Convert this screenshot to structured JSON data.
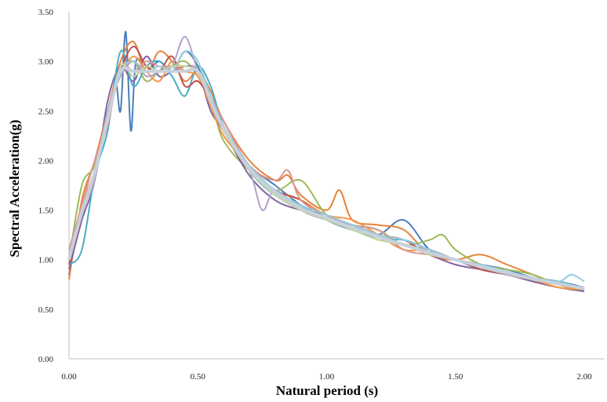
{
  "chart_data": {
    "type": "line",
    "title": "",
    "xlabel": "Natural period (s)",
    "ylabel": "Spectral Acceleration(g)",
    "xlim": [
      0,
      2
    ],
    "ylim": [
      0,
      3.5
    ],
    "x_ticks": [
      "0.00",
      "0.50",
      "1.00",
      "1.50",
      "2.00"
    ],
    "y_ticks": [
      "0.00",
      "0.50",
      "1.00",
      "1.50",
      "2.00",
      "2.50",
      "3.00",
      "3.50"
    ],
    "grid": false,
    "legend": "none",
    "series": [
      {
        "color": "#4a7ebb",
        "x": [
          0,
          0.05,
          0.1,
          0.15,
          0.18,
          0.2,
          0.22,
          0.24,
          0.26,
          0.3,
          0.35,
          0.4,
          0.45,
          0.5,
          0.55,
          0.6,
          0.7,
          0.8,
          0.9,
          1.0,
          1.1,
          1.2,
          1.3,
          1.4,
          1.5,
          1.6,
          1.7,
          1.8,
          1.9,
          2.0
        ],
        "y": [
          0.85,
          1.5,
          1.9,
          2.4,
          2.8,
          2.5,
          3.3,
          2.3,
          3.0,
          2.9,
          3.0,
          2.9,
          3.1,
          2.95,
          2.6,
          2.3,
          1.95,
          1.75,
          1.55,
          1.4,
          1.3,
          1.25,
          1.4,
          1.1,
          1.0,
          0.95,
          0.9,
          0.82,
          0.78,
          0.72
        ]
      },
      {
        "color": "#e8823a",
        "x": [
          0,
          0.05,
          0.1,
          0.15,
          0.2,
          0.25,
          0.3,
          0.35,
          0.4,
          0.45,
          0.5,
          0.55,
          0.6,
          0.7,
          0.8,
          0.85,
          0.9,
          1.0,
          1.05,
          1.1,
          1.2,
          1.3,
          1.4,
          1.5,
          1.6,
          1.7,
          1.8,
          1.9,
          2.0
        ],
        "y": [
          0.8,
          1.6,
          2.0,
          2.5,
          3.0,
          3.2,
          2.9,
          3.1,
          3.0,
          2.8,
          2.9,
          2.7,
          2.4,
          2.0,
          1.8,
          1.85,
          1.65,
          1.5,
          1.7,
          1.4,
          1.35,
          1.3,
          1.05,
          1.0,
          1.05,
          0.95,
          0.85,
          0.75,
          0.68
        ]
      },
      {
        "color": "#9bbb59",
        "x": [
          0,
          0.05,
          0.1,
          0.15,
          0.2,
          0.25,
          0.3,
          0.35,
          0.4,
          0.45,
          0.5,
          0.55,
          0.6,
          0.7,
          0.8,
          0.9,
          1.0,
          1.1,
          1.2,
          1.3,
          1.4,
          1.45,
          1.5,
          1.6,
          1.7,
          1.8,
          1.9,
          2.0
        ],
        "y": [
          1.0,
          1.75,
          1.95,
          2.45,
          2.9,
          3.0,
          2.8,
          2.9,
          2.95,
          3.0,
          2.85,
          2.6,
          2.2,
          1.9,
          1.7,
          1.8,
          1.45,
          1.35,
          1.3,
          1.15,
          1.2,
          1.25,
          1.1,
          0.95,
          0.9,
          0.85,
          0.75,
          0.7
        ]
      },
      {
        "color": "#8064a2",
        "x": [
          0,
          0.05,
          0.1,
          0.15,
          0.2,
          0.25,
          0.3,
          0.35,
          0.4,
          0.45,
          0.5,
          0.55,
          0.6,
          0.7,
          0.8,
          0.9,
          1.0,
          1.1,
          1.2,
          1.3,
          1.4,
          1.5,
          1.6,
          1.7,
          1.8,
          1.9,
          2.0
        ],
        "y": [
          0.9,
          1.4,
          1.8,
          2.6,
          2.95,
          2.8,
          3.05,
          2.85,
          2.9,
          2.95,
          2.9,
          2.5,
          2.3,
          1.85,
          1.6,
          1.5,
          1.45,
          1.3,
          1.25,
          1.15,
          1.05,
          0.95,
          0.9,
          0.85,
          0.78,
          0.72,
          0.68
        ]
      },
      {
        "color": "#4bacc6",
        "x": [
          0,
          0.05,
          0.1,
          0.15,
          0.2,
          0.25,
          0.3,
          0.35,
          0.4,
          0.45,
          0.5,
          0.55,
          0.6,
          0.7,
          0.8,
          0.9,
          1.0,
          1.1,
          1.2,
          1.3,
          1.4,
          1.5,
          1.6,
          1.7,
          1.8,
          1.9,
          2.0
        ],
        "y": [
          0.95,
          1.1,
          1.85,
          2.3,
          3.1,
          2.75,
          2.95,
          3.0,
          2.85,
          2.65,
          2.95,
          2.75,
          2.35,
          1.9,
          1.65,
          1.55,
          1.4,
          1.35,
          1.2,
          1.2,
          1.1,
          1.0,
          0.9,
          0.85,
          0.8,
          0.78,
          0.7
        ]
      },
      {
        "color": "#f79646",
        "x": [
          0,
          0.05,
          0.1,
          0.15,
          0.2,
          0.25,
          0.3,
          0.35,
          0.4,
          0.45,
          0.5,
          0.55,
          0.6,
          0.7,
          0.8,
          0.9,
          1.0,
          1.1,
          1.2,
          1.3,
          1.4,
          1.5,
          1.6,
          1.7,
          1.8,
          1.9,
          2.0
        ],
        "y": [
          1.05,
          1.55,
          1.9,
          2.5,
          2.85,
          3.05,
          2.9,
          2.8,
          3.0,
          2.9,
          2.85,
          2.55,
          2.25,
          1.95,
          1.7,
          1.6,
          1.45,
          1.4,
          1.25,
          1.1,
          1.1,
          1.0,
          0.95,
          0.85,
          0.8,
          0.72,
          0.7
        ]
      },
      {
        "color": "#c0504d",
        "x": [
          0,
          0.05,
          0.1,
          0.15,
          0.2,
          0.25,
          0.3,
          0.35,
          0.4,
          0.45,
          0.5,
          0.55,
          0.6,
          0.7,
          0.8,
          0.9,
          1.0,
          1.1,
          1.2,
          1.3,
          1.4,
          1.5,
          1.6,
          1.7,
          1.8,
          1.9,
          2.0
        ],
        "y": [
          0.95,
          1.45,
          1.85,
          2.4,
          2.9,
          3.15,
          2.95,
          2.9,
          3.05,
          2.75,
          2.8,
          2.6,
          2.3,
          1.9,
          1.7,
          1.6,
          1.4,
          1.35,
          1.25,
          1.2,
          1.05,
          1.0,
          0.9,
          0.85,
          0.8,
          0.75,
          0.72
        ]
      },
      {
        "color": "#d99694",
        "x": [
          0,
          0.05,
          0.1,
          0.15,
          0.2,
          0.25,
          0.3,
          0.35,
          0.4,
          0.45,
          0.5,
          0.55,
          0.6,
          0.7,
          0.8,
          0.85,
          0.9,
          1.0,
          1.1,
          1.2,
          1.3,
          1.4,
          1.5,
          1.6,
          1.7,
          1.8,
          1.9,
          2.0
        ],
        "y": [
          1.1,
          1.55,
          2.0,
          2.35,
          2.95,
          2.9,
          3.0,
          2.95,
          2.95,
          2.9,
          2.9,
          2.65,
          2.4,
          1.95,
          1.8,
          1.9,
          1.6,
          1.45,
          1.35,
          1.3,
          1.1,
          1.05,
          1.0,
          0.95,
          0.85,
          0.8,
          0.75,
          0.72
        ]
      },
      {
        "color": "#b3a2c7",
        "x": [
          0,
          0.05,
          0.1,
          0.15,
          0.2,
          0.25,
          0.3,
          0.35,
          0.4,
          0.45,
          0.5,
          0.55,
          0.6,
          0.7,
          0.75,
          0.8,
          0.9,
          1.0,
          1.1,
          1.2,
          1.3,
          1.4,
          1.5,
          1.6,
          1.7,
          1.8,
          1.9,
          2.0
        ],
        "y": [
          1.0,
          1.5,
          1.8,
          2.5,
          2.85,
          3.0,
          2.85,
          2.9,
          2.95,
          3.25,
          2.9,
          2.6,
          2.3,
          1.9,
          1.5,
          1.7,
          1.5,
          1.4,
          1.35,
          1.25,
          1.15,
          1.1,
          1.0,
          0.92,
          0.85,
          0.8,
          0.75,
          0.7
        ]
      },
      {
        "color": "#93cddd",
        "x": [
          0,
          0.05,
          0.1,
          0.15,
          0.2,
          0.25,
          0.3,
          0.35,
          0.4,
          0.45,
          0.5,
          0.55,
          0.6,
          0.7,
          0.8,
          0.9,
          1.0,
          1.1,
          1.2,
          1.3,
          1.4,
          1.5,
          1.6,
          1.7,
          1.8,
          1.9,
          1.95,
          2.0
        ],
        "y": [
          1.05,
          1.5,
          1.9,
          2.45,
          2.9,
          3.0,
          2.9,
          2.95,
          2.9,
          3.1,
          3.0,
          2.65,
          2.35,
          1.95,
          1.7,
          1.55,
          1.45,
          1.35,
          1.25,
          1.2,
          1.1,
          1.0,
          0.95,
          0.88,
          0.82,
          0.78,
          0.85,
          0.78
        ]
      },
      {
        "color": "#c3d69b",
        "x": [
          0,
          0.05,
          0.1,
          0.15,
          0.2,
          0.25,
          0.3,
          0.35,
          0.4,
          0.45,
          0.5,
          0.55,
          0.6,
          0.7,
          0.8,
          0.9,
          1.0,
          1.1,
          1.2,
          1.3,
          1.4,
          1.5,
          1.6,
          1.7,
          1.8,
          1.9,
          2.0
        ],
        "y": [
          1.0,
          1.45,
          1.9,
          2.4,
          2.95,
          2.85,
          2.95,
          2.9,
          2.95,
          2.95,
          2.9,
          2.6,
          2.3,
          1.9,
          1.65,
          1.5,
          1.4,
          1.3,
          1.2,
          1.15,
          1.05,
          1.0,
          0.92,
          0.86,
          0.8,
          0.75,
          0.7
        ]
      },
      {
        "color": "#c6d1dc",
        "x": [
          0,
          0.05,
          0.1,
          0.15,
          0.2,
          0.25,
          0.3,
          0.35,
          0.4,
          0.45,
          0.5,
          0.55,
          0.6,
          0.7,
          0.8,
          0.9,
          1.0,
          1.1,
          1.2,
          1.3,
          1.4,
          1.5,
          1.6,
          1.7,
          1.8,
          1.9,
          2.0
        ],
        "y": [
          1.0,
          1.48,
          1.88,
          2.42,
          2.9,
          2.9,
          2.9,
          2.9,
          2.9,
          2.9,
          2.9,
          2.6,
          2.32,
          1.92,
          1.68,
          1.52,
          1.42,
          1.32,
          1.23,
          1.15,
          1.07,
          1.0,
          0.93,
          0.87,
          0.81,
          0.76,
          0.71
        ]
      }
    ]
  }
}
